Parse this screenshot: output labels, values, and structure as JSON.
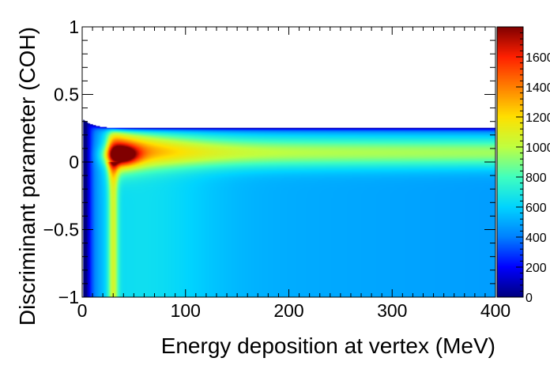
{
  "chart_data": {
    "type": "heatmap",
    "title": "",
    "xlabel": "Energy deposition at vertex (MeV)",
    "ylabel": "Discriminant parameter (COH)",
    "xlim": [
      0,
      400
    ],
    "ylim": [
      -1,
      1
    ],
    "x_ticks": [
      "0",
      "100",
      "200",
      "300",
      "400"
    ],
    "x_tick_values": [
      0,
      100,
      200,
      300,
      400
    ],
    "y_ticks": [
      "−1",
      "−0.5",
      "0",
      "0.5",
      "1"
    ],
    "y_tick_values": [
      -1,
      -0.5,
      0,
      0.5,
      1
    ],
    "colorbar": {
      "range": [
        0,
        1800
      ],
      "tick_labels": [
        "0",
        "200",
        "400",
        "600",
        "800",
        "1000",
        "1200",
        "1400",
        "1600"
      ],
      "tick_values": [
        0,
        200,
        400,
        600,
        800,
        1000,
        1200,
        1400,
        1600
      ],
      "palette": [
        "#00007f",
        "#0000ff",
        "#0080ff",
        "#00d4ff",
        "#40ffbf",
        "#c0ff40",
        "#ffe000",
        "#ff8000",
        "#ff2000",
        "#800000"
      ]
    },
    "features": {
      "populated_x_range": [
        1,
        400
      ],
      "populated_y_range": [
        -1,
        0.25
      ],
      "peak": {
        "x": 38,
        "y": 0.05,
        "value": 1800
      },
      "band_center_y": 0.07,
      "band_level_far": 1000,
      "lower_region_level": 520
    },
    "grid": false
  }
}
